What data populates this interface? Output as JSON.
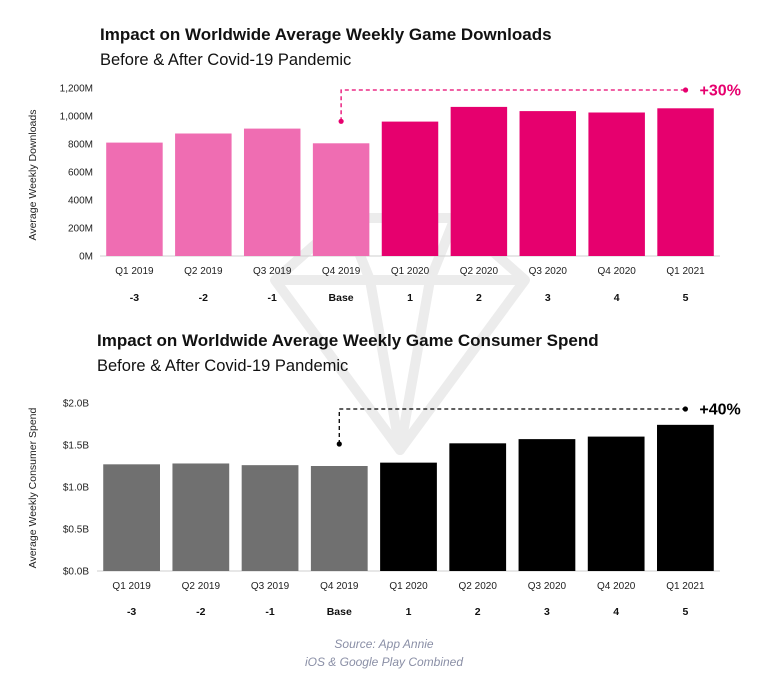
{
  "source": {
    "line1": "Source: App Annie",
    "line2": "iOS & Google Play Combined"
  },
  "colors": {
    "downloads_before": "#ef6db2",
    "downloads_after": "#e6006e",
    "spend_before": "#707070",
    "spend_after": "#000000",
    "downloads_accent": "#e6006e",
    "spend_accent": "#000000"
  },
  "watermark_icon": "diamond-logo-icon",
  "chart_data": [
    {
      "type": "bar",
      "title": "Impact on Worldwide Average Weekly Game Downloads",
      "subtitle": "Before & After Covid-19 Pandemic",
      "ylabel": "Average Weekly Downloads",
      "xlabel": "",
      "categories": [
        "Q1 2019",
        "Q2 2019",
        "Q3 2019",
        "Q4 2019",
        "Q1 2020",
        "Q2 2020",
        "Q3 2020",
        "Q4 2020",
        "Q1 2021"
      ],
      "index_labels": [
        "-3",
        "-2",
        "-1",
        "Base",
        "1",
        "2",
        "3",
        "4",
        "5"
      ],
      "values": [
        810,
        875,
        910,
        805,
        960,
        1065,
        1035,
        1025,
        1055
      ],
      "value_unit": "M",
      "ylim": [
        0,
        1200
      ],
      "yticks": [
        0,
        200,
        400,
        600,
        800,
        1000,
        1200
      ],
      "ytick_labels": [
        "0M",
        "200M",
        "400M",
        "600M",
        "800M",
        "1,000M",
        "1,200M"
      ],
      "grid": false,
      "annotation": "+30%",
      "annotation_from_category": "Q4 2019",
      "annotation_to_category": "Q1 2021"
    },
    {
      "type": "bar",
      "title": "Impact on Worldwide Average Weekly Game Consumer Spend",
      "subtitle": "Before & After Covid-19 Pandemic",
      "ylabel": "Average Weekly Consumer Spend",
      "xlabel": "",
      "categories": [
        "Q1 2019",
        "Q2 2019",
        "Q3 2019",
        "Q4 2019",
        "Q1 2020",
        "Q2 2020",
        "Q3 2020",
        "Q4 2020",
        "Q1 2021"
      ],
      "index_labels": [
        "-3",
        "-2",
        "-1",
        "Base",
        "1",
        "2",
        "3",
        "4",
        "5"
      ],
      "values": [
        1.27,
        1.28,
        1.26,
        1.25,
        1.29,
        1.52,
        1.57,
        1.6,
        1.74
      ],
      "value_unit": "B USD",
      "ylim": [
        0,
        2.0
      ],
      "yticks": [
        0,
        0.5,
        1.0,
        1.5,
        2.0
      ],
      "ytick_labels": [
        "$0.0B",
        "$0.5B",
        "$1.0B",
        "$1.5B",
        "$2.0B"
      ],
      "grid": false,
      "annotation": "+40%",
      "annotation_from_category": "Q4 2019",
      "annotation_to_category": "Q1 2021"
    }
  ]
}
